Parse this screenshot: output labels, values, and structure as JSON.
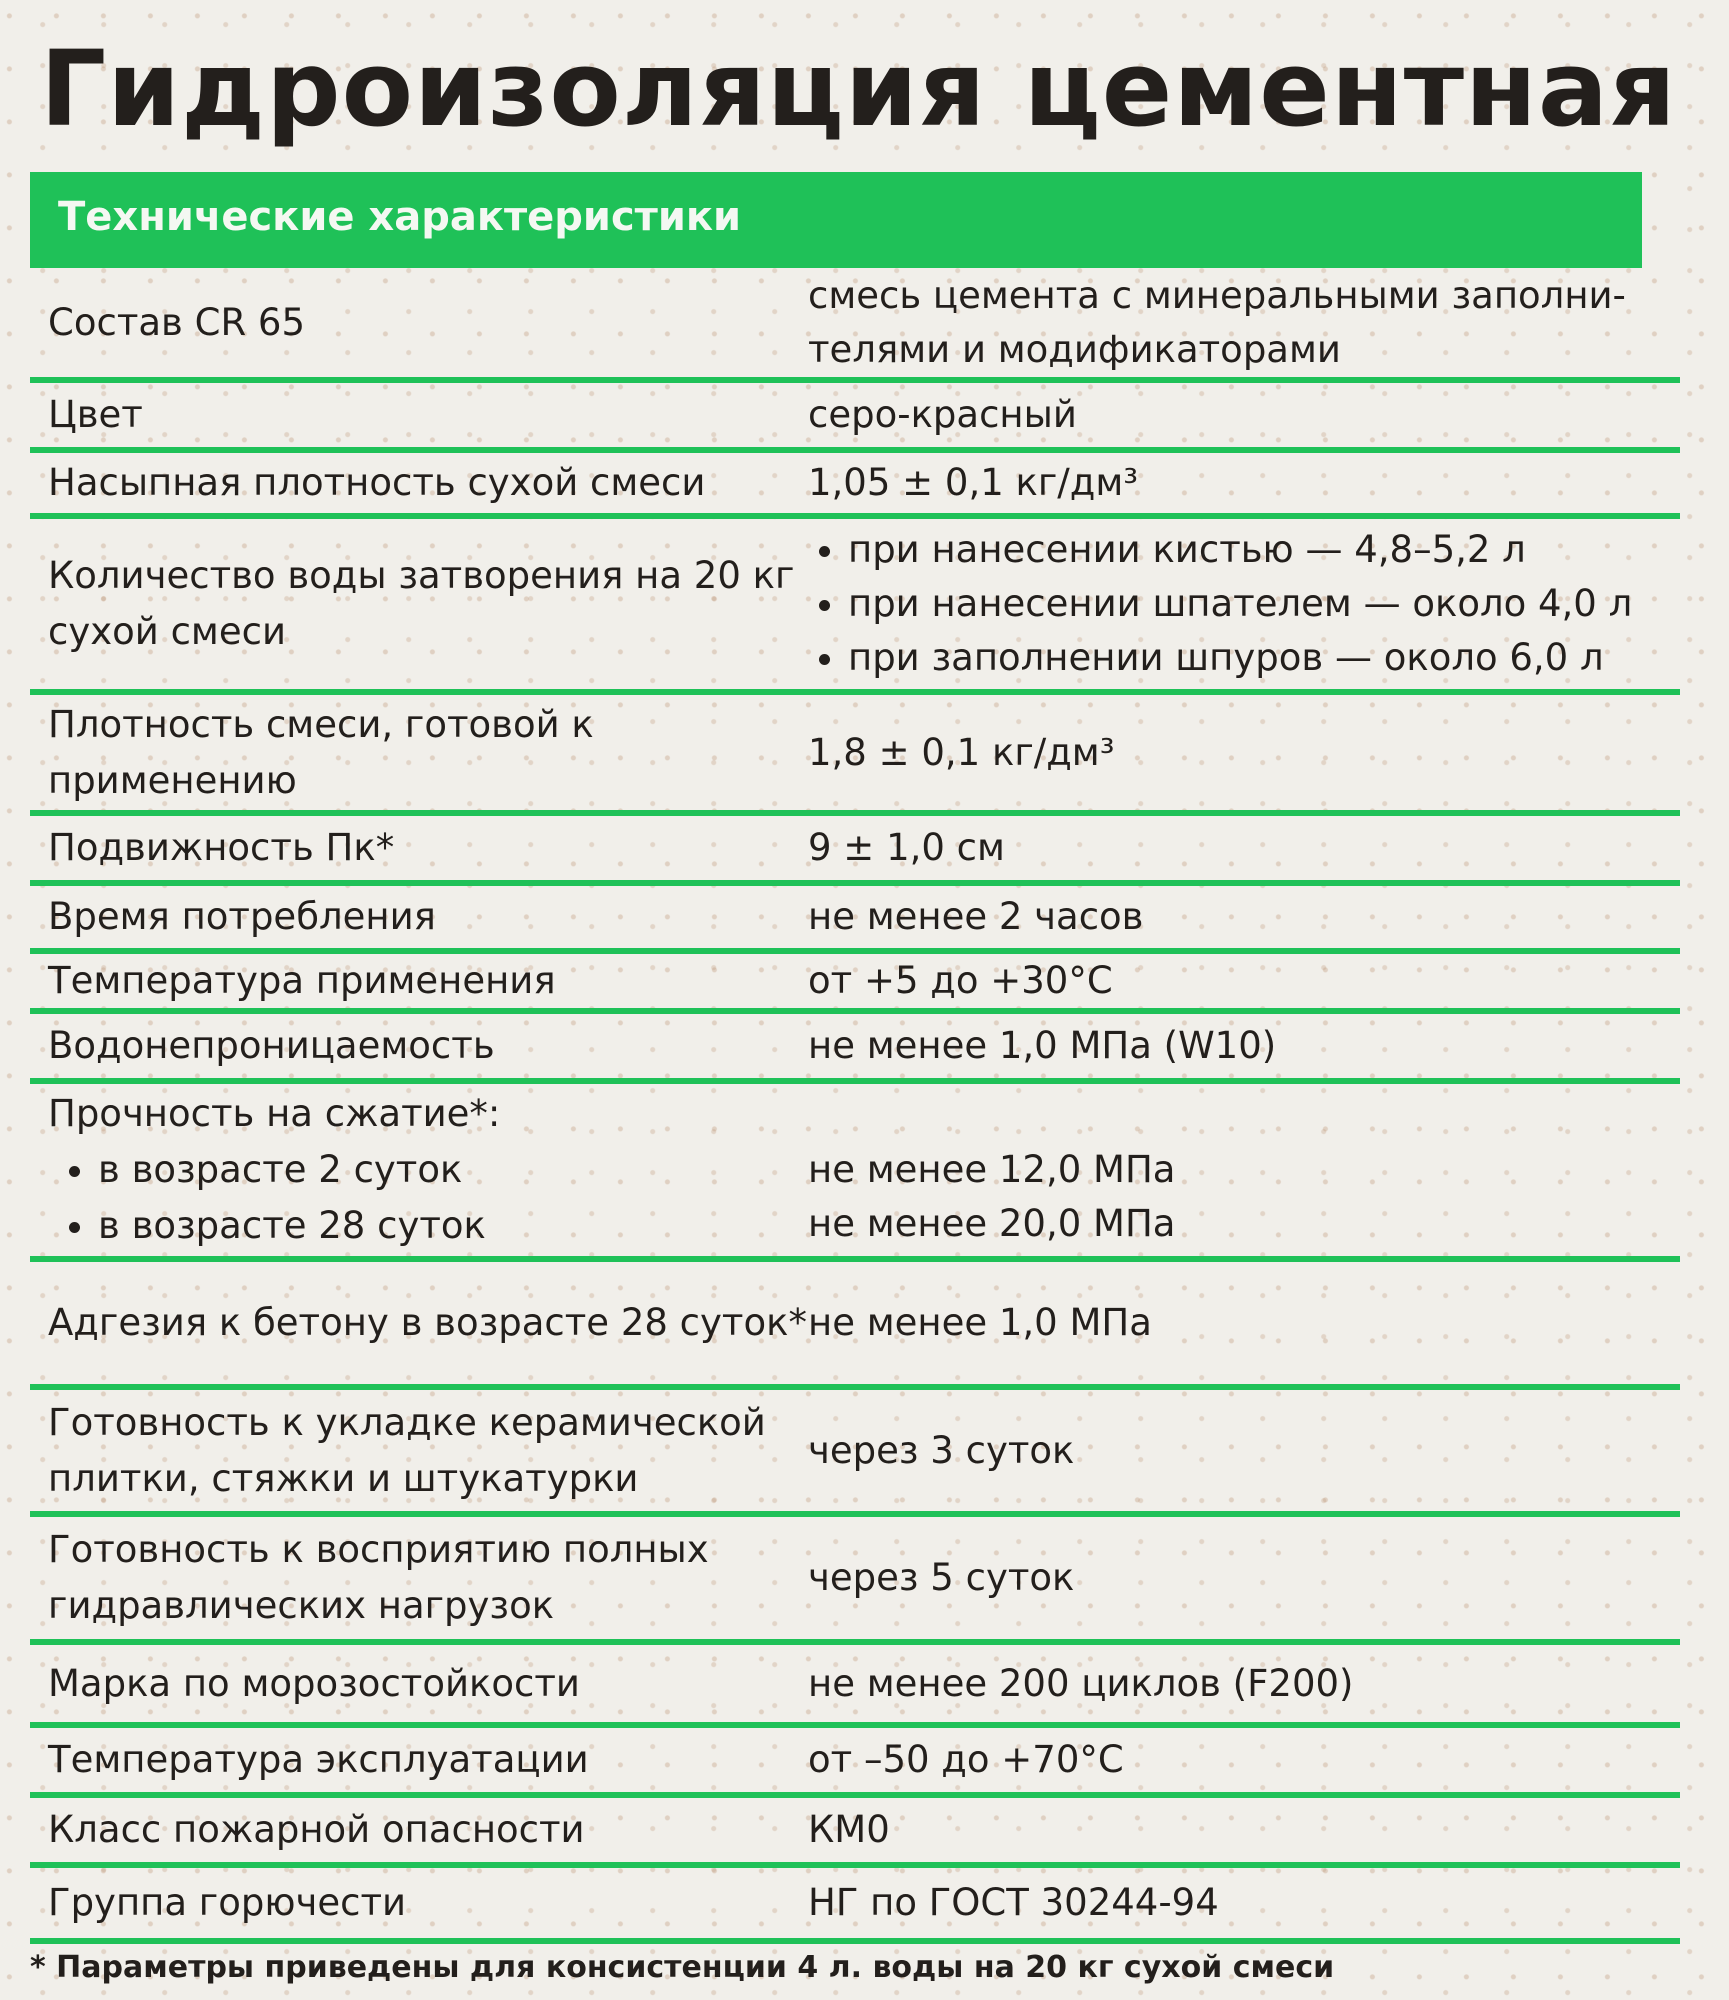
{
  "title": "Гидроизоляция цементная",
  "section": "Технические характеристики",
  "accent": "#1fc158",
  "rows": [
    {
      "key": "Состав CR 65",
      "value": "смесь цемента с минеральными заполни-телями и модификаторами"
    },
    {
      "key": "Цвет",
      "value": "серо-красный"
    },
    {
      "key": "Насыпная плотность сухой смеси",
      "value": "1,05 ± 0,1 кг/дм³"
    },
    {
      "key": "Количество воды затворения на 20 кг сухой смеси",
      "items": [
        "при нанесении кистью — 4,8–5,2 л",
        "при нанесении шпателем — около 4,0 л",
        "при заполнении шпуров — около 6,0 л"
      ]
    },
    {
      "key": "Плотность смеси, готовой к применению",
      "value": "1,8 ± 0,1 кг/дм³"
    },
    {
      "key": "Подвижность Пк*",
      "value": "9 ± 1,0 см"
    },
    {
      "key": "Время потребления",
      "value": "не менее 2 часов"
    },
    {
      "key": "Температура применения",
      "value": "от +5 до +30°С"
    },
    {
      "key": "Водонепроницаемость",
      "value": "не менее 1,0 МПа (W10)"
    },
    {
      "key": "Прочность на сжатие*:",
      "subkeys": [
        "в возрасте 2 суток",
        "в возрасте 28 суток"
      ],
      "values": [
        "не менее 12,0 МПа",
        "не менее 20,0 МПа"
      ]
    },
    {
      "key": "Адгезия к бетону в возрасте 28 суток*",
      "value": "не менее 1,0 МПа"
    },
    {
      "key": "Готовность к укладке керамической плитки, стяжки и штукатурки",
      "value": "через 3 суток"
    },
    {
      "key": "Готовность к восприятию полных гидравлических нагрузок",
      "value": "через 5 суток"
    },
    {
      "key": "Марка по морозостойкости",
      "value": "не менее 200 циклов (F200)"
    },
    {
      "key": "Температура эксплуатации",
      "value": "от –50 до +70°С"
    },
    {
      "key": "Класс пожарной опасности",
      "value": "КМ0"
    },
    {
      "key": "Группа горючести",
      "value": "НГ по ГОСТ 30244-94"
    }
  ],
  "footnote": "* Параметры приведены для консистенции 4 л. воды на 20 кг сухой смеси"
}
